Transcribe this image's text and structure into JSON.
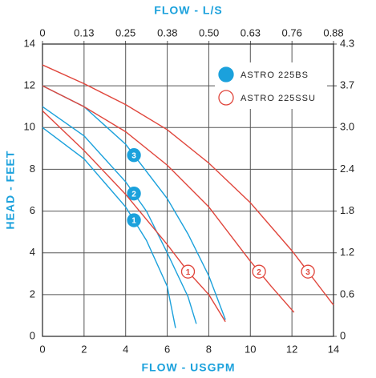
{
  "chart_data": {
    "type": "line",
    "xlabel": "FLOW - USGPM",
    "ylabel": "HEAD - FEET",
    "x2label": "FLOW - L/S",
    "xlim": [
      0,
      14
    ],
    "xticks": [
      0,
      2,
      4,
      6,
      8,
      10,
      12,
      14
    ],
    "ylim": [
      0,
      14
    ],
    "yticks": [
      0,
      2,
      4,
      6,
      8,
      10,
      12,
      14
    ],
    "x2lim": [
      0,
      0.883
    ],
    "x2ticks": [
      0,
      {
        "value": 0.126,
        "label": "0.13"
      },
      {
        "value": 0.252,
        "label": "0.25"
      },
      {
        "value": 0.379,
        "label": "0.38"
      },
      {
        "value": 0.505,
        "label": "0.50"
      },
      {
        "value": 0.631,
        "label": "0.63"
      },
      {
        "value": 0.757,
        "label": "0.76"
      },
      {
        "value": 0.883,
        "label": "0.88"
      }
    ],
    "y2lim": [
      0,
      4.27
    ],
    "y2ticks": [
      0,
      {
        "value": 0.61,
        "label": "0.6"
      },
      {
        "value": 1.22,
        "label": "1.2"
      },
      {
        "value": 1.83,
        "label": "1.8"
      },
      {
        "value": 2.44,
        "label": "2.4"
      },
      {
        "value": 3.05,
        "label": "3.0"
      },
      {
        "value": 3.66,
        "label": "3.7"
      },
      {
        "value": 4.27,
        "label": "4.3"
      }
    ],
    "grid": true,
    "legend": "upper right",
    "series": [
      {
        "name": "ASTRO 225BS",
        "color": "#1ba1dc",
        "marker": "filled",
        "curves": [
          {
            "label": "1",
            "x": [
              0,
              2,
              4,
              5,
              6,
              6.4
            ],
            "values": [
              10,
              8.5,
              6.2,
              4.6,
              2.4,
              0.4
            ]
          },
          {
            "label": "2",
            "x": [
              0,
              2,
              4,
              5,
              6,
              7,
              7.4
            ],
            "values": [
              11,
              9.6,
              7.4,
              6,
              4,
              1.9,
              0.6
            ]
          },
          {
            "label": "3",
            "x": [
              0,
              2,
              4,
              6,
              7,
              8,
              8.8
            ],
            "values": [
              12,
              11,
              9.2,
              6.6,
              4.9,
              2.9,
              0.8
            ]
          }
        ]
      },
      {
        "name": "ASTRO 225SSU",
        "color": "#e0463c",
        "marker": "hollow",
        "curves": [
          {
            "label": "1",
            "x": [
              0,
              2,
              4,
              6,
              7,
              8,
              8.8
            ],
            "values": [
              10.8,
              8.9,
              6.8,
              4.4,
              3.1,
              2.0,
              0.7
            ]
          },
          {
            "label": "2",
            "x": [
              0,
              2,
              4,
              6,
              8,
              10,
              11,
              12.1
            ],
            "values": [
              12,
              11,
              9.8,
              8.2,
              6.2,
              3.6,
              2.4,
              1.15
            ]
          },
          {
            "label": "3",
            "x": [
              0,
              2,
              4,
              6,
              8,
              10,
              12,
              13,
              14
            ],
            "values": [
              13,
              12.1,
              11.1,
              9.9,
              8.3,
              6.4,
              4.1,
              2.8,
              1.5
            ]
          }
        ]
      }
    ]
  }
}
